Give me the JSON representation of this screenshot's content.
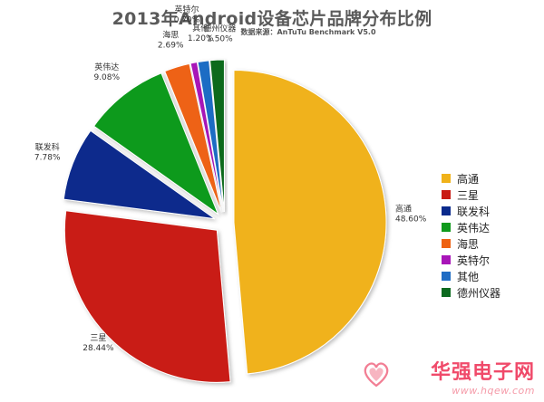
{
  "chart_data": {
    "type": "pie",
    "title": "2013年Android设备芯片品牌分布比例",
    "subtitle": "数据来源：AnTuTu Benchmark V5.0",
    "start_angle_deg": 0,
    "direction": "clockwise",
    "exploded": true,
    "legend_position": "right",
    "slices": [
      {
        "name": "高通",
        "value": 48.6,
        "label": "48.60%",
        "color": "#f0b21a"
      },
      {
        "name": "三星",
        "value": 28.44,
        "label": "28.44%",
        "color": "#c91b14"
      },
      {
        "name": "联发科",
        "value": 7.78,
        "label": "7.78%",
        "color": "#0a2a8c"
      },
      {
        "name": "英伟达",
        "value": 9.08,
        "label": "9.08%",
        "color": "#0f9a1c"
      },
      {
        "name": "海思",
        "value": 2.69,
        "label": "2.69%",
        "color": "#ee6212"
      },
      {
        "name": "英特尔",
        "value": 0.7,
        "label": "0.70%",
        "color": "#a815b8"
      },
      {
        "name": "其他",
        "value": 1.2,
        "label": "1.20%",
        "color": "#1f6cc4"
      },
      {
        "name": "德州仪器",
        "value": 1.5,
        "label": "1.50%",
        "color": "#0c6a1f"
      }
    ]
  },
  "watermark": {
    "name": "华强电子网",
    "url": "www.hqew.com",
    "logo_icon": "heart-logo-icon"
  }
}
